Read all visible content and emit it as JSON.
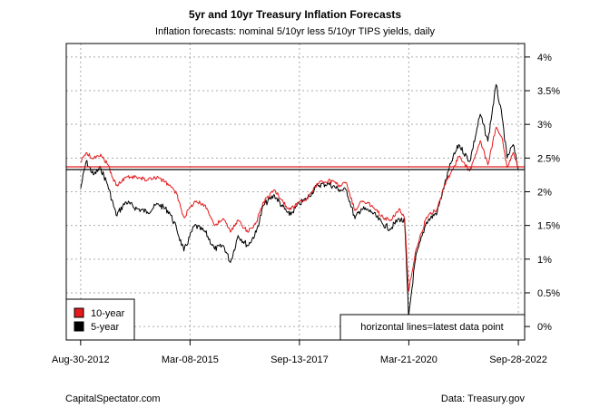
{
  "chart_data": {
    "type": "line",
    "title": "5yr and 10yr Treasury Inflation Forecasts",
    "subtitle": "Inflation forecasts: nominal 5/10yr less 5/10yr TIPS yields, daily",
    "xlabel": "",
    "ylabel": "",
    "x_tick_labels": [
      "Aug-30-2012",
      "Mar-08-2015",
      "Sep-13-2017",
      "Mar-21-2020",
      "Sep-28-2022"
    ],
    "y_tick_labels": [
      "0%",
      "0.5%",
      "1%",
      "1.5%",
      "2%",
      "2.5%",
      "3%",
      "3.5%",
      "4%"
    ],
    "ylim": [
      -0.2,
      4.2
    ],
    "y_ticks": [
      0,
      0.5,
      1,
      1.5,
      2,
      2.5,
      3,
      3.5,
      4
    ],
    "xlim": [
      "2012-05-01",
      "2022-11-20"
    ],
    "grid": true,
    "legend_position": "bottom-left",
    "series": [
      {
        "name": "10-year",
        "color": "#e41a1c",
        "points": [
          [
            "2012-08-30",
            2.44
          ],
          [
            "2012-10-15",
            2.58
          ],
          [
            "2012-12-15",
            2.49
          ],
          [
            "2013-02-15",
            2.56
          ],
          [
            "2013-04-15",
            2.4
          ],
          [
            "2013-06-25",
            2.09
          ],
          [
            "2013-09-15",
            2.22
          ],
          [
            "2013-12-15",
            2.21
          ],
          [
            "2014-03-15",
            2.18
          ],
          [
            "2014-06-15",
            2.21
          ],
          [
            "2014-09-15",
            2.1
          ],
          [
            "2014-11-15",
            1.97
          ],
          [
            "2015-01-15",
            1.62
          ],
          [
            "2015-04-15",
            1.86
          ],
          [
            "2015-07-15",
            1.8
          ],
          [
            "2015-09-30",
            1.5
          ],
          [
            "2015-12-15",
            1.6
          ],
          [
            "2016-02-11",
            1.4
          ],
          [
            "2016-04-15",
            1.58
          ],
          [
            "2016-07-06",
            1.4
          ],
          [
            "2016-09-15",
            1.55
          ],
          [
            "2016-11-15",
            1.85
          ],
          [
            "2017-02-15",
            2.03
          ],
          [
            "2017-04-15",
            1.88
          ],
          [
            "2017-06-20",
            1.73
          ],
          [
            "2017-09-13",
            1.85
          ],
          [
            "2017-11-15",
            1.9
          ],
          [
            "2018-02-15",
            2.12
          ],
          [
            "2018-05-15",
            2.17
          ],
          [
            "2018-08-15",
            2.1
          ],
          [
            "2018-10-15",
            2.13
          ],
          [
            "2018-12-24",
            1.72
          ],
          [
            "2019-02-15",
            1.86
          ],
          [
            "2019-05-15",
            1.8
          ],
          [
            "2019-08-15",
            1.63
          ],
          [
            "2019-10-15",
            1.57
          ],
          [
            "2019-12-31",
            1.75
          ],
          [
            "2020-02-15",
            1.6
          ],
          [
            "2020-03-19",
            0.52
          ],
          [
            "2020-05-15",
            1.1
          ],
          [
            "2020-08-15",
            1.62
          ],
          [
            "2020-11-15",
            1.75
          ],
          [
            "2021-01-15",
            2.1
          ],
          [
            "2021-03-15",
            2.3
          ],
          [
            "2021-05-15",
            2.52
          ],
          [
            "2021-08-15",
            2.31
          ],
          [
            "2021-11-12",
            2.76
          ],
          [
            "2022-01-15",
            2.4
          ],
          [
            "2022-03-25",
            2.96
          ],
          [
            "2022-05-15",
            2.8
          ],
          [
            "2022-06-25",
            2.36
          ],
          [
            "2022-08-15",
            2.58
          ],
          [
            "2022-09-28",
            2.37
          ]
        ]
      },
      {
        "name": "5-year",
        "color": "#000000",
        "points": [
          [
            "2012-08-30",
            2.05
          ],
          [
            "2012-10-15",
            2.45
          ],
          [
            "2012-12-15",
            2.25
          ],
          [
            "2013-02-15",
            2.35
          ],
          [
            "2013-04-15",
            2.1
          ],
          [
            "2013-06-25",
            1.65
          ],
          [
            "2013-09-15",
            1.85
          ],
          [
            "2013-12-15",
            1.75
          ],
          [
            "2014-03-15",
            1.7
          ],
          [
            "2014-06-15",
            1.82
          ],
          [
            "2014-09-15",
            1.7
          ],
          [
            "2014-11-15",
            1.45
          ],
          [
            "2015-01-15",
            1.12
          ],
          [
            "2015-04-15",
            1.5
          ],
          [
            "2015-07-15",
            1.4
          ],
          [
            "2015-09-30",
            1.15
          ],
          [
            "2015-12-15",
            1.2
          ],
          [
            "2016-02-11",
            0.95
          ],
          [
            "2016-04-15",
            1.35
          ],
          [
            "2016-07-06",
            1.2
          ],
          [
            "2016-09-15",
            1.4
          ],
          [
            "2016-11-15",
            1.8
          ],
          [
            "2017-02-15",
            1.95
          ],
          [
            "2017-04-15",
            1.8
          ],
          [
            "2017-06-20",
            1.65
          ],
          [
            "2017-09-13",
            1.82
          ],
          [
            "2017-11-15",
            1.9
          ],
          [
            "2018-02-15",
            2.1
          ],
          [
            "2018-05-15",
            2.12
          ],
          [
            "2018-08-15",
            2.03
          ],
          [
            "2018-10-15",
            2.02
          ],
          [
            "2018-12-24",
            1.6
          ],
          [
            "2019-02-15",
            1.75
          ],
          [
            "2019-05-15",
            1.7
          ],
          [
            "2019-08-15",
            1.52
          ],
          [
            "2019-10-15",
            1.45
          ],
          [
            "2019-12-31",
            1.6
          ],
          [
            "2020-02-15",
            1.55
          ],
          [
            "2020-03-19",
            0.14
          ],
          [
            "2020-05-15",
            1.0
          ],
          [
            "2020-08-15",
            1.55
          ],
          [
            "2020-11-15",
            1.7
          ],
          [
            "2021-01-15",
            2.1
          ],
          [
            "2021-03-15",
            2.45
          ],
          [
            "2021-05-15",
            2.7
          ],
          [
            "2021-08-15",
            2.45
          ],
          [
            "2021-11-12",
            3.15
          ],
          [
            "2022-01-15",
            2.75
          ],
          [
            "2022-03-25",
            3.59
          ],
          [
            "2022-05-15",
            3.1
          ],
          [
            "2022-06-25",
            2.5
          ],
          [
            "2022-08-15",
            2.7
          ],
          [
            "2022-09-28",
            2.33
          ]
        ]
      }
    ],
    "horizontal_lines": [
      {
        "value": 2.37,
        "color": "#e41a1c"
      },
      {
        "value": 2.33,
        "color": "#000000"
      }
    ],
    "annotation": "horizontal lines=latest data point"
  },
  "footer": {
    "left": "CapitalSpectator.com",
    "right": "Data: Treasury.gov"
  }
}
